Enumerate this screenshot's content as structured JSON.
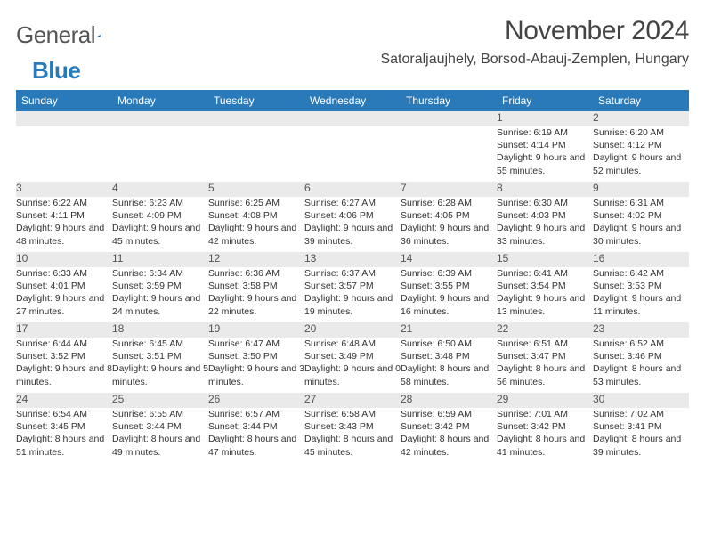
{
  "logo": {
    "part1": "General",
    "part2": "Blue"
  },
  "title": "November 2024",
  "location": "Satoraljaujhely, Borsod-Abauj-Zemplen, Hungary",
  "day_headers": [
    "Sunday",
    "Monday",
    "Tuesday",
    "Wednesday",
    "Thursday",
    "Friday",
    "Saturday"
  ],
  "colors": {
    "header_bg": "#2a7ab9",
    "header_text": "#ffffff",
    "date_bg": "#eaeaea",
    "border": "#2a7ab9",
    "text": "#333333"
  },
  "weeks": [
    [
      null,
      null,
      null,
      null,
      null,
      {
        "d": "1",
        "sunrise": "6:19 AM",
        "sunset": "4:14 PM",
        "daylight": "9 hours and 55 minutes."
      },
      {
        "d": "2",
        "sunrise": "6:20 AM",
        "sunset": "4:12 PM",
        "daylight": "9 hours and 52 minutes."
      }
    ],
    [
      {
        "d": "3",
        "sunrise": "6:22 AM",
        "sunset": "4:11 PM",
        "daylight": "9 hours and 48 minutes."
      },
      {
        "d": "4",
        "sunrise": "6:23 AM",
        "sunset": "4:09 PM",
        "daylight": "9 hours and 45 minutes."
      },
      {
        "d": "5",
        "sunrise": "6:25 AM",
        "sunset": "4:08 PM",
        "daylight": "9 hours and 42 minutes."
      },
      {
        "d": "6",
        "sunrise": "6:27 AM",
        "sunset": "4:06 PM",
        "daylight": "9 hours and 39 minutes."
      },
      {
        "d": "7",
        "sunrise": "6:28 AM",
        "sunset": "4:05 PM",
        "daylight": "9 hours and 36 minutes."
      },
      {
        "d": "8",
        "sunrise": "6:30 AM",
        "sunset": "4:03 PM",
        "daylight": "9 hours and 33 minutes."
      },
      {
        "d": "9",
        "sunrise": "6:31 AM",
        "sunset": "4:02 PM",
        "daylight": "9 hours and 30 minutes."
      }
    ],
    [
      {
        "d": "10",
        "sunrise": "6:33 AM",
        "sunset": "4:01 PM",
        "daylight": "9 hours and 27 minutes."
      },
      {
        "d": "11",
        "sunrise": "6:34 AM",
        "sunset": "3:59 PM",
        "daylight": "9 hours and 24 minutes."
      },
      {
        "d": "12",
        "sunrise": "6:36 AM",
        "sunset": "3:58 PM",
        "daylight": "9 hours and 22 minutes."
      },
      {
        "d": "13",
        "sunrise": "6:37 AM",
        "sunset": "3:57 PM",
        "daylight": "9 hours and 19 minutes."
      },
      {
        "d": "14",
        "sunrise": "6:39 AM",
        "sunset": "3:55 PM",
        "daylight": "9 hours and 16 minutes."
      },
      {
        "d": "15",
        "sunrise": "6:41 AM",
        "sunset": "3:54 PM",
        "daylight": "9 hours and 13 minutes."
      },
      {
        "d": "16",
        "sunrise": "6:42 AM",
        "sunset": "3:53 PM",
        "daylight": "9 hours and 11 minutes."
      }
    ],
    [
      {
        "d": "17",
        "sunrise": "6:44 AM",
        "sunset": "3:52 PM",
        "daylight": "9 hours and 8 minutes."
      },
      {
        "d": "18",
        "sunrise": "6:45 AM",
        "sunset": "3:51 PM",
        "daylight": "9 hours and 5 minutes."
      },
      {
        "d": "19",
        "sunrise": "6:47 AM",
        "sunset": "3:50 PM",
        "daylight": "9 hours and 3 minutes."
      },
      {
        "d": "20",
        "sunrise": "6:48 AM",
        "sunset": "3:49 PM",
        "daylight": "9 hours and 0 minutes."
      },
      {
        "d": "21",
        "sunrise": "6:50 AM",
        "sunset": "3:48 PM",
        "daylight": "8 hours and 58 minutes."
      },
      {
        "d": "22",
        "sunrise": "6:51 AM",
        "sunset": "3:47 PM",
        "daylight": "8 hours and 56 minutes."
      },
      {
        "d": "23",
        "sunrise": "6:52 AM",
        "sunset": "3:46 PM",
        "daylight": "8 hours and 53 minutes."
      }
    ],
    [
      {
        "d": "24",
        "sunrise": "6:54 AM",
        "sunset": "3:45 PM",
        "daylight": "8 hours and 51 minutes."
      },
      {
        "d": "25",
        "sunrise": "6:55 AM",
        "sunset": "3:44 PM",
        "daylight": "8 hours and 49 minutes."
      },
      {
        "d": "26",
        "sunrise": "6:57 AM",
        "sunset": "3:44 PM",
        "daylight": "8 hours and 47 minutes."
      },
      {
        "d": "27",
        "sunrise": "6:58 AM",
        "sunset": "3:43 PM",
        "daylight": "8 hours and 45 minutes."
      },
      {
        "d": "28",
        "sunrise": "6:59 AM",
        "sunset": "3:42 PM",
        "daylight": "8 hours and 42 minutes."
      },
      {
        "d": "29",
        "sunrise": "7:01 AM",
        "sunset": "3:42 PM",
        "daylight": "8 hours and 41 minutes."
      },
      {
        "d": "30",
        "sunrise": "7:02 AM",
        "sunset": "3:41 PM",
        "daylight": "8 hours and 39 minutes."
      }
    ]
  ]
}
